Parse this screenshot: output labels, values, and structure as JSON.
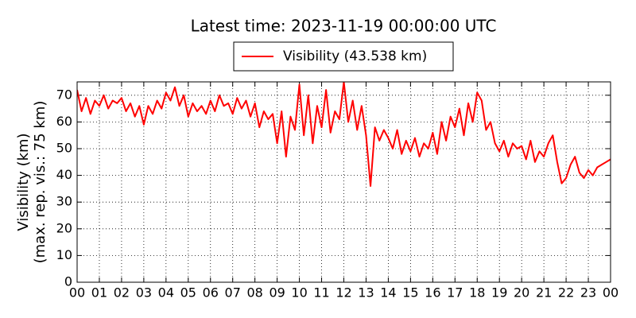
{
  "chart_data": {
    "type": "line",
    "title": "Latest time: 2023-11-19 00:00:00 UTC",
    "ylabel": [
      "Visibility (km)",
      "(max. rep. vis.: 75 km)"
    ],
    "x": [
      0,
      0.2,
      0.4,
      0.6,
      0.8,
      1,
      1.2,
      1.4,
      1.6,
      1.8,
      2,
      2.2,
      2.4,
      2.6,
      2.8,
      3,
      3.2,
      3.4,
      3.6,
      3.8,
      4,
      4.2,
      4.4,
      4.6,
      4.8,
      5,
      5.2,
      5.4,
      5.6,
      5.8,
      6,
      6.2,
      6.4,
      6.6,
      6.8,
      7,
      7.2,
      7.4,
      7.6,
      7.8,
      8,
      8.2,
      8.4,
      8.6,
      8.8,
      9,
      9.2,
      9.4,
      9.6,
      9.8,
      10,
      10.2,
      10.4,
      10.6,
      10.8,
      11,
      11.2,
      11.4,
      11.6,
      11.8,
      12,
      12.2,
      12.4,
      12.6,
      12.8,
      13,
      13.2,
      13.4,
      13.6,
      13.8,
      14,
      14.2,
      14.4,
      14.6,
      14.8,
      15,
      15.2,
      15.4,
      15.6,
      15.8,
      16,
      16.2,
      16.4,
      16.6,
      16.8,
      17,
      17.2,
      17.4,
      17.6,
      17.8,
      18,
      18.2,
      18.4,
      18.6,
      18.8,
      19,
      19.2,
      19.4,
      19.6,
      19.8,
      20,
      20.2,
      20.4,
      20.6,
      20.8,
      21,
      21.2,
      21.4,
      21.6,
      21.8,
      22,
      22.2,
      22.4,
      22.6,
      22.8,
      23,
      23.2,
      23.4,
      23.6,
      23.8,
      24
    ],
    "series": [
      {
        "name": "Visibility (43.538 km)",
        "color": "#ff0000",
        "values": [
          72,
          64,
          69,
          63,
          68,
          66,
          70,
          65,
          68,
          67,
          69,
          64,
          67,
          62,
          66,
          59,
          66,
          63,
          68,
          65,
          71,
          68,
          73,
          66,
          70,
          62,
          67,
          64,
          66,
          63,
          68,
          64,
          70,
          66,
          67,
          63,
          69,
          65,
          68,
          62,
          67,
          58,
          64,
          61,
          63,
          52,
          64,
          47,
          62,
          57,
          74,
          55,
          70,
          52,
          66,
          58,
          72,
          56,
          64,
          61,
          75,
          60,
          68,
          57,
          66,
          55,
          36,
          58,
          53,
          57,
          54,
          50,
          57,
          48,
          53,
          49,
          54,
          47,
          52,
          50,
          56,
          48,
          60,
          53,
          62,
          58,
          65,
          55,
          67,
          60,
          71,
          68,
          57,
          60,
          52,
          49,
          53,
          47,
          52,
          50,
          51,
          46,
          53,
          45,
          49,
          47,
          52,
          55,
          45,
          37,
          39,
          44,
          47,
          41,
          39,
          42,
          40,
          43,
          44,
          45,
          46
        ]
      }
    ],
    "xlim": [
      0,
      24
    ],
    "xticks": [
      {
        "value": 0,
        "label": "00"
      },
      {
        "value": 1,
        "label": "01"
      },
      {
        "value": 2,
        "label": "02"
      },
      {
        "value": 3,
        "label": "03"
      },
      {
        "value": 4,
        "label": "04"
      },
      {
        "value": 5,
        "label": "05"
      },
      {
        "value": 6,
        "label": "06"
      },
      {
        "value": 7,
        "label": "07"
      },
      {
        "value": 8,
        "label": "08"
      },
      {
        "value": 9,
        "label": "09"
      },
      {
        "value": 10,
        "label": "10"
      },
      {
        "value": 11,
        "label": "11"
      },
      {
        "value": 12,
        "label": "12"
      },
      {
        "value": 13,
        "label": "13"
      },
      {
        "value": 14,
        "label": "14"
      },
      {
        "value": 15,
        "label": "15"
      },
      {
        "value": 16,
        "label": "16"
      },
      {
        "value": 17,
        "label": "17"
      },
      {
        "value": 18,
        "label": "18"
      },
      {
        "value": 19,
        "label": "19"
      },
      {
        "value": 20,
        "label": "20"
      },
      {
        "value": 21,
        "label": "21"
      },
      {
        "value": 22,
        "label": "22"
      },
      {
        "value": 23,
        "label": "23"
      },
      {
        "value": 24,
        "label": "00"
      }
    ],
    "ylim": [
      0,
      75
    ],
    "yticks": [
      0,
      10,
      20,
      30,
      40,
      50,
      60,
      70
    ],
    "grid": true,
    "legend": "top"
  }
}
